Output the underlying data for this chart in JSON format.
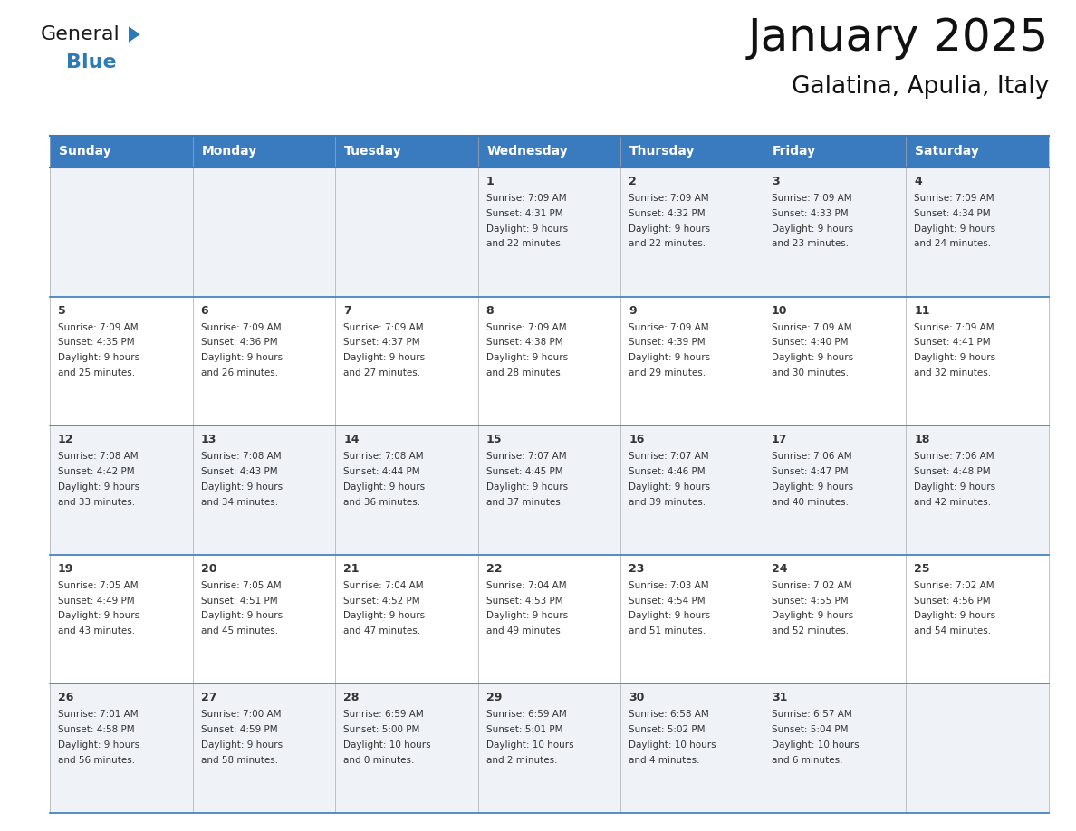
{
  "title": "January 2025",
  "subtitle": "Galatina, Apulia, Italy",
  "header_color": "#3a7abf",
  "header_text_color": "#ffffff",
  "cell_bg_odd": "#eff3f8",
  "cell_bg_even": "#ffffff",
  "row_line_color": "#3a7abf",
  "text_color": "#333333",
  "day_headers": [
    "Sunday",
    "Monday",
    "Tuesday",
    "Wednesday",
    "Thursday",
    "Friday",
    "Saturday"
  ],
  "days": [
    {
      "day": 1,
      "col": 3,
      "row": 0,
      "sunrise": "7:09 AM",
      "sunset": "4:31 PM",
      "daylight_h": "9 hours",
      "daylight_m": "22 minutes."
    },
    {
      "day": 2,
      "col": 4,
      "row": 0,
      "sunrise": "7:09 AM",
      "sunset": "4:32 PM",
      "daylight_h": "9 hours",
      "daylight_m": "22 minutes."
    },
    {
      "day": 3,
      "col": 5,
      "row": 0,
      "sunrise": "7:09 AM",
      "sunset": "4:33 PM",
      "daylight_h": "9 hours",
      "daylight_m": "23 minutes."
    },
    {
      "day": 4,
      "col": 6,
      "row": 0,
      "sunrise": "7:09 AM",
      "sunset": "4:34 PM",
      "daylight_h": "9 hours",
      "daylight_m": "24 minutes."
    },
    {
      "day": 5,
      "col": 0,
      "row": 1,
      "sunrise": "7:09 AM",
      "sunset": "4:35 PM",
      "daylight_h": "9 hours",
      "daylight_m": "25 minutes."
    },
    {
      "day": 6,
      "col": 1,
      "row": 1,
      "sunrise": "7:09 AM",
      "sunset": "4:36 PM",
      "daylight_h": "9 hours",
      "daylight_m": "26 minutes."
    },
    {
      "day": 7,
      "col": 2,
      "row": 1,
      "sunrise": "7:09 AM",
      "sunset": "4:37 PM",
      "daylight_h": "9 hours",
      "daylight_m": "27 minutes."
    },
    {
      "day": 8,
      "col": 3,
      "row": 1,
      "sunrise": "7:09 AM",
      "sunset": "4:38 PM",
      "daylight_h": "9 hours",
      "daylight_m": "28 minutes."
    },
    {
      "day": 9,
      "col": 4,
      "row": 1,
      "sunrise": "7:09 AM",
      "sunset": "4:39 PM",
      "daylight_h": "9 hours",
      "daylight_m": "29 minutes."
    },
    {
      "day": 10,
      "col": 5,
      "row": 1,
      "sunrise": "7:09 AM",
      "sunset": "4:40 PM",
      "daylight_h": "9 hours",
      "daylight_m": "30 minutes."
    },
    {
      "day": 11,
      "col": 6,
      "row": 1,
      "sunrise": "7:09 AM",
      "sunset": "4:41 PM",
      "daylight_h": "9 hours",
      "daylight_m": "32 minutes."
    },
    {
      "day": 12,
      "col": 0,
      "row": 2,
      "sunrise": "7:08 AM",
      "sunset": "4:42 PM",
      "daylight_h": "9 hours",
      "daylight_m": "33 minutes."
    },
    {
      "day": 13,
      "col": 1,
      "row": 2,
      "sunrise": "7:08 AM",
      "sunset": "4:43 PM",
      "daylight_h": "9 hours",
      "daylight_m": "34 minutes."
    },
    {
      "day": 14,
      "col": 2,
      "row": 2,
      "sunrise": "7:08 AM",
      "sunset": "4:44 PM",
      "daylight_h": "9 hours",
      "daylight_m": "36 minutes."
    },
    {
      "day": 15,
      "col": 3,
      "row": 2,
      "sunrise": "7:07 AM",
      "sunset": "4:45 PM",
      "daylight_h": "9 hours",
      "daylight_m": "37 minutes."
    },
    {
      "day": 16,
      "col": 4,
      "row": 2,
      "sunrise": "7:07 AM",
      "sunset": "4:46 PM",
      "daylight_h": "9 hours",
      "daylight_m": "39 minutes."
    },
    {
      "day": 17,
      "col": 5,
      "row": 2,
      "sunrise": "7:06 AM",
      "sunset": "4:47 PM",
      "daylight_h": "9 hours",
      "daylight_m": "40 minutes."
    },
    {
      "day": 18,
      "col": 6,
      "row": 2,
      "sunrise": "7:06 AM",
      "sunset": "4:48 PM",
      "daylight_h": "9 hours",
      "daylight_m": "42 minutes."
    },
    {
      "day": 19,
      "col": 0,
      "row": 3,
      "sunrise": "7:05 AM",
      "sunset": "4:49 PM",
      "daylight_h": "9 hours",
      "daylight_m": "43 minutes."
    },
    {
      "day": 20,
      "col": 1,
      "row": 3,
      "sunrise": "7:05 AM",
      "sunset": "4:51 PM",
      "daylight_h": "9 hours",
      "daylight_m": "45 minutes."
    },
    {
      "day": 21,
      "col": 2,
      "row": 3,
      "sunrise": "7:04 AM",
      "sunset": "4:52 PM",
      "daylight_h": "9 hours",
      "daylight_m": "47 minutes."
    },
    {
      "day": 22,
      "col": 3,
      "row": 3,
      "sunrise": "7:04 AM",
      "sunset": "4:53 PM",
      "daylight_h": "9 hours",
      "daylight_m": "49 minutes."
    },
    {
      "day": 23,
      "col": 4,
      "row": 3,
      "sunrise": "7:03 AM",
      "sunset": "4:54 PM",
      "daylight_h": "9 hours",
      "daylight_m": "51 minutes."
    },
    {
      "day": 24,
      "col": 5,
      "row": 3,
      "sunrise": "7:02 AM",
      "sunset": "4:55 PM",
      "daylight_h": "9 hours",
      "daylight_m": "52 minutes."
    },
    {
      "day": 25,
      "col": 6,
      "row": 3,
      "sunrise": "7:02 AM",
      "sunset": "4:56 PM",
      "daylight_h": "9 hours",
      "daylight_m": "54 minutes."
    },
    {
      "day": 26,
      "col": 0,
      "row": 4,
      "sunrise": "7:01 AM",
      "sunset": "4:58 PM",
      "daylight_h": "9 hours",
      "daylight_m": "56 minutes."
    },
    {
      "day": 27,
      "col": 1,
      "row": 4,
      "sunrise": "7:00 AM",
      "sunset": "4:59 PM",
      "daylight_h": "9 hours",
      "daylight_m": "58 minutes."
    },
    {
      "day": 28,
      "col": 2,
      "row": 4,
      "sunrise": "6:59 AM",
      "sunset": "5:00 PM",
      "daylight_h": "10 hours",
      "daylight_m": "0 minutes."
    },
    {
      "day": 29,
      "col": 3,
      "row": 4,
      "sunrise": "6:59 AM",
      "sunset": "5:01 PM",
      "daylight_h": "10 hours",
      "daylight_m": "2 minutes."
    },
    {
      "day": 30,
      "col": 4,
      "row": 4,
      "sunrise": "6:58 AM",
      "sunset": "5:02 PM",
      "daylight_h": "10 hours",
      "daylight_m": "4 minutes."
    },
    {
      "day": 31,
      "col": 5,
      "row": 4,
      "sunrise": "6:57 AM",
      "sunset": "5:04 PM",
      "daylight_h": "10 hours",
      "daylight_m": "6 minutes."
    }
  ],
  "num_rows": 5,
  "logo_color_general": "#1a1a1a",
  "logo_color_blue": "#2b7bb9",
  "logo_triangle_color": "#2b7bb9"
}
